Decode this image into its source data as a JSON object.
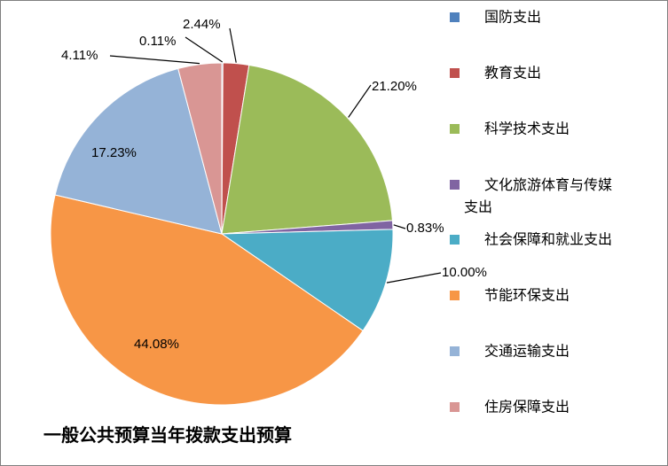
{
  "chart_data": {
    "type": "pie",
    "title": "一般公共预算当年拨款支出预算",
    "categories": [
      "国防支出",
      "教育支出",
      "科学技术支出",
      "文化旅游体育与传媒支出",
      "社会保障和就业支出",
      "节能环保支出",
      "交通运输支出",
      "住房保障支出"
    ],
    "values": [
      0.11,
      2.44,
      21.2,
      0.83,
      10.0,
      44.08,
      17.23,
      4.11
    ],
    "labels": [
      "0.11%",
      "2.44%",
      "21.20%",
      "0.83%",
      "10.00%",
      "44.08%",
      "17.23%",
      "4.11%"
    ],
    "colors": [
      "#4f81bd",
      "#c0504d",
      "#9bbb59",
      "#8064a2",
      "#4bacc6",
      "#f79646",
      "#95b3d7",
      "#d99694"
    ],
    "legend_position": "right",
    "start_angle": "12 o'clock, clockwise"
  }
}
